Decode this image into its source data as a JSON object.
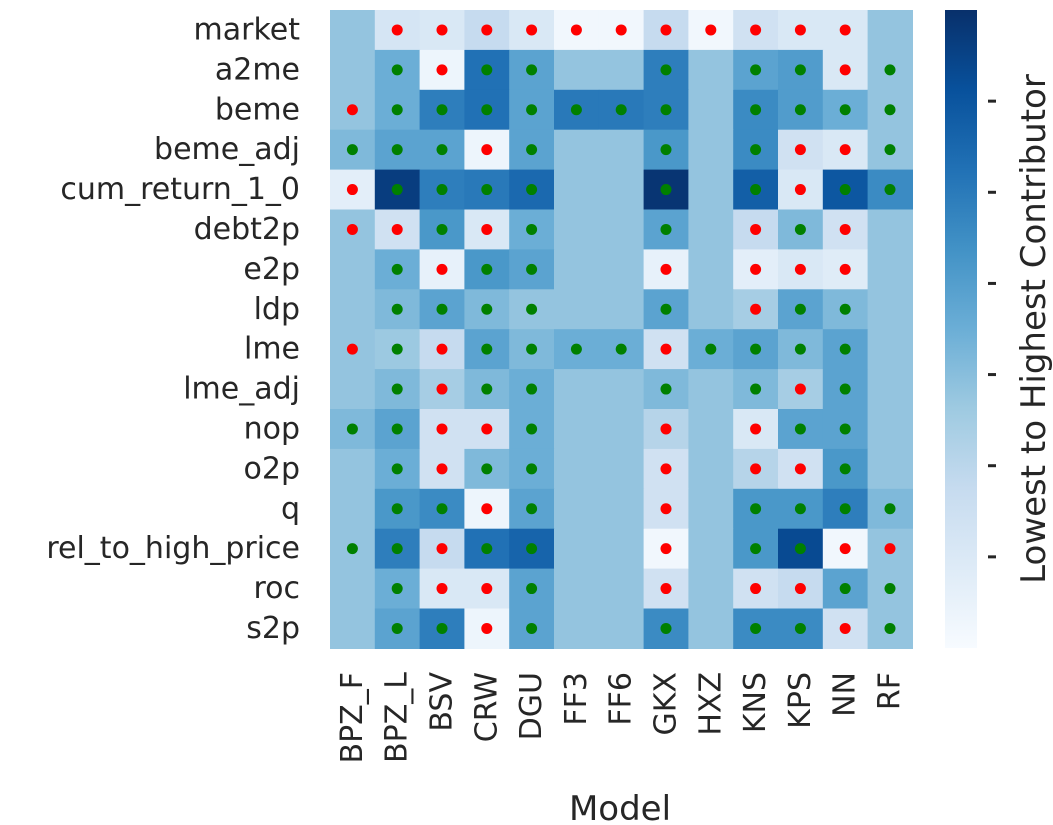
{
  "chart_data": {
    "type": "heatmap",
    "xlabel": "Model",
    "ylabel": "",
    "colorbar_label": "Lowest to Highest Contributor",
    "colormap": "Blues",
    "colormap_stops": [
      "#f7fbff",
      "#deebf7",
      "#c6dbef",
      "#9ecae1",
      "#6baed6",
      "#4292c6",
      "#2171b5",
      "#08519c",
      "#08306b"
    ],
    "value_range": [
      0,
      1
    ],
    "marker_colors": {
      "g": "#008000",
      "r": "#ff0000"
    },
    "x_categories": [
      "BPZ_F",
      "BPZ_L",
      "BSV",
      "CRW",
      "DGU",
      "FF3",
      "FF6",
      "GKX",
      "HXZ",
      "KNS",
      "KPS",
      "NN",
      "RF"
    ],
    "y_categories": [
      "market",
      "a2me",
      "beme",
      "beme_adj",
      "cum_return_1_0",
      "debt2p",
      "e2p",
      "ldp",
      "lme",
      "lme_adj",
      "nop",
      "o2p",
      "q",
      "rel_to_high_price",
      "roc",
      "s2p"
    ],
    "values": [
      [
        0.4,
        0.17,
        0.15,
        0.25,
        0.15,
        0.03,
        0.03,
        0.25,
        0.03,
        0.2,
        0.15,
        0.15,
        0.4
      ],
      [
        0.4,
        0.5,
        0.05,
        0.75,
        0.55,
        0.4,
        0.4,
        0.7,
        0.4,
        0.55,
        0.58,
        0.15,
        0.4
      ],
      [
        0.4,
        0.5,
        0.7,
        0.75,
        0.55,
        0.72,
        0.72,
        0.7,
        0.4,
        0.65,
        0.58,
        0.5,
        0.4
      ],
      [
        0.45,
        0.55,
        0.55,
        0.05,
        0.55,
        0.4,
        0.4,
        0.6,
        0.4,
        0.65,
        0.2,
        0.15,
        0.4
      ],
      [
        0.1,
        0.95,
        0.7,
        0.72,
        0.78,
        0.4,
        0.4,
        0.98,
        0.4,
        0.82,
        0.15,
        0.85,
        0.65
      ],
      [
        0.4,
        0.2,
        0.6,
        0.15,
        0.5,
        0.4,
        0.4,
        0.55,
        0.4,
        0.25,
        0.45,
        0.2,
        0.4
      ],
      [
        0.4,
        0.5,
        0.08,
        0.6,
        0.55,
        0.4,
        0.4,
        0.08,
        0.4,
        0.1,
        0.15,
        0.12,
        0.4
      ],
      [
        0.4,
        0.45,
        0.55,
        0.45,
        0.4,
        0.4,
        0.4,
        0.55,
        0.4,
        0.35,
        0.55,
        0.45,
        0.4
      ],
      [
        0.4,
        0.38,
        0.25,
        0.55,
        0.45,
        0.5,
        0.5,
        0.2,
        0.5,
        0.55,
        0.45,
        0.55,
        0.4
      ],
      [
        0.4,
        0.45,
        0.35,
        0.45,
        0.5,
        0.4,
        0.4,
        0.45,
        0.4,
        0.45,
        0.35,
        0.55,
        0.4
      ],
      [
        0.45,
        0.55,
        0.2,
        0.2,
        0.5,
        0.4,
        0.4,
        0.3,
        0.4,
        0.15,
        0.55,
        0.55,
        0.4
      ],
      [
        0.4,
        0.5,
        0.2,
        0.45,
        0.5,
        0.4,
        0.4,
        0.2,
        0.4,
        0.3,
        0.2,
        0.6,
        0.4
      ],
      [
        0.4,
        0.6,
        0.65,
        0.05,
        0.55,
        0.4,
        0.4,
        0.2,
        0.4,
        0.6,
        0.6,
        0.7,
        0.45
      ],
      [
        0.4,
        0.7,
        0.25,
        0.75,
        0.8,
        0.4,
        0.4,
        0.03,
        0.4,
        0.6,
        0.9,
        0.03,
        0.4
      ],
      [
        0.4,
        0.5,
        0.15,
        0.15,
        0.55,
        0.4,
        0.4,
        0.2,
        0.4,
        0.2,
        0.25,
        0.55,
        0.4
      ],
      [
        0.4,
        0.55,
        0.7,
        0.05,
        0.55,
        0.4,
        0.4,
        0.65,
        0.4,
        0.65,
        0.65,
        0.2,
        0.4
      ]
    ],
    "markers": [
      [
        "",
        "r",
        "r",
        "r",
        "r",
        "r",
        "r",
        "r",
        "r",
        "r",
        "r",
        "r",
        ""
      ],
      [
        "",
        "g",
        "r",
        "g",
        "g",
        "",
        "",
        "g",
        "",
        "g",
        "g",
        "r",
        "g"
      ],
      [
        "r",
        "g",
        "g",
        "g",
        "g",
        "g",
        "g",
        "g",
        "",
        "g",
        "g",
        "g",
        "g"
      ],
      [
        "g",
        "g",
        "g",
        "r",
        "g",
        "",
        "",
        "g",
        "",
        "g",
        "r",
        "r",
        "g"
      ],
      [
        "r",
        "g",
        "g",
        "g",
        "g",
        "",
        "",
        "g",
        "",
        "g",
        "r",
        "g",
        "g"
      ],
      [
        "r",
        "r",
        "g",
        "r",
        "g",
        "",
        "",
        "g",
        "",
        "r",
        "g",
        "r",
        ""
      ],
      [
        "",
        "g",
        "r",
        "g",
        "g",
        "",
        "",
        "r",
        "",
        "r",
        "r",
        "r",
        ""
      ],
      [
        "",
        "g",
        "g",
        "g",
        "g",
        "",
        "",
        "g",
        "",
        "r",
        "g",
        "g",
        ""
      ],
      [
        "r",
        "g",
        "r",
        "g",
        "g",
        "g",
        "g",
        "r",
        "g",
        "g",
        "g",
        "g",
        ""
      ],
      [
        "",
        "g",
        "r",
        "g",
        "g",
        "",
        "",
        "g",
        "",
        "g",
        "r",
        "g",
        ""
      ],
      [
        "g",
        "g",
        "r",
        "r",
        "g",
        "",
        "",
        "r",
        "",
        "r",
        "g",
        "g",
        ""
      ],
      [
        "",
        "g",
        "r",
        "g",
        "g",
        "",
        "",
        "r",
        "",
        "r",
        "r",
        "g",
        ""
      ],
      [
        "",
        "g",
        "g",
        "r",
        "g",
        "",
        "",
        "r",
        "",
        "g",
        "g",
        "g",
        "g"
      ],
      [
        "g",
        "g",
        "r",
        "g",
        "g",
        "",
        "",
        "r",
        "",
        "g",
        "g",
        "r",
        "r"
      ],
      [
        "",
        "g",
        "r",
        "r",
        "g",
        "",
        "",
        "r",
        "",
        "r",
        "r",
        "g",
        "g"
      ],
      [
        "",
        "g",
        "g",
        "r",
        "g",
        "",
        "",
        "g",
        "",
        "g",
        "g",
        "r",
        "g"
      ]
    ],
    "grid": false,
    "legend": "none",
    "colorbar_position": "right",
    "colorbar_ticks_labeled": false,
    "colorbar_tick_count": 6
  }
}
